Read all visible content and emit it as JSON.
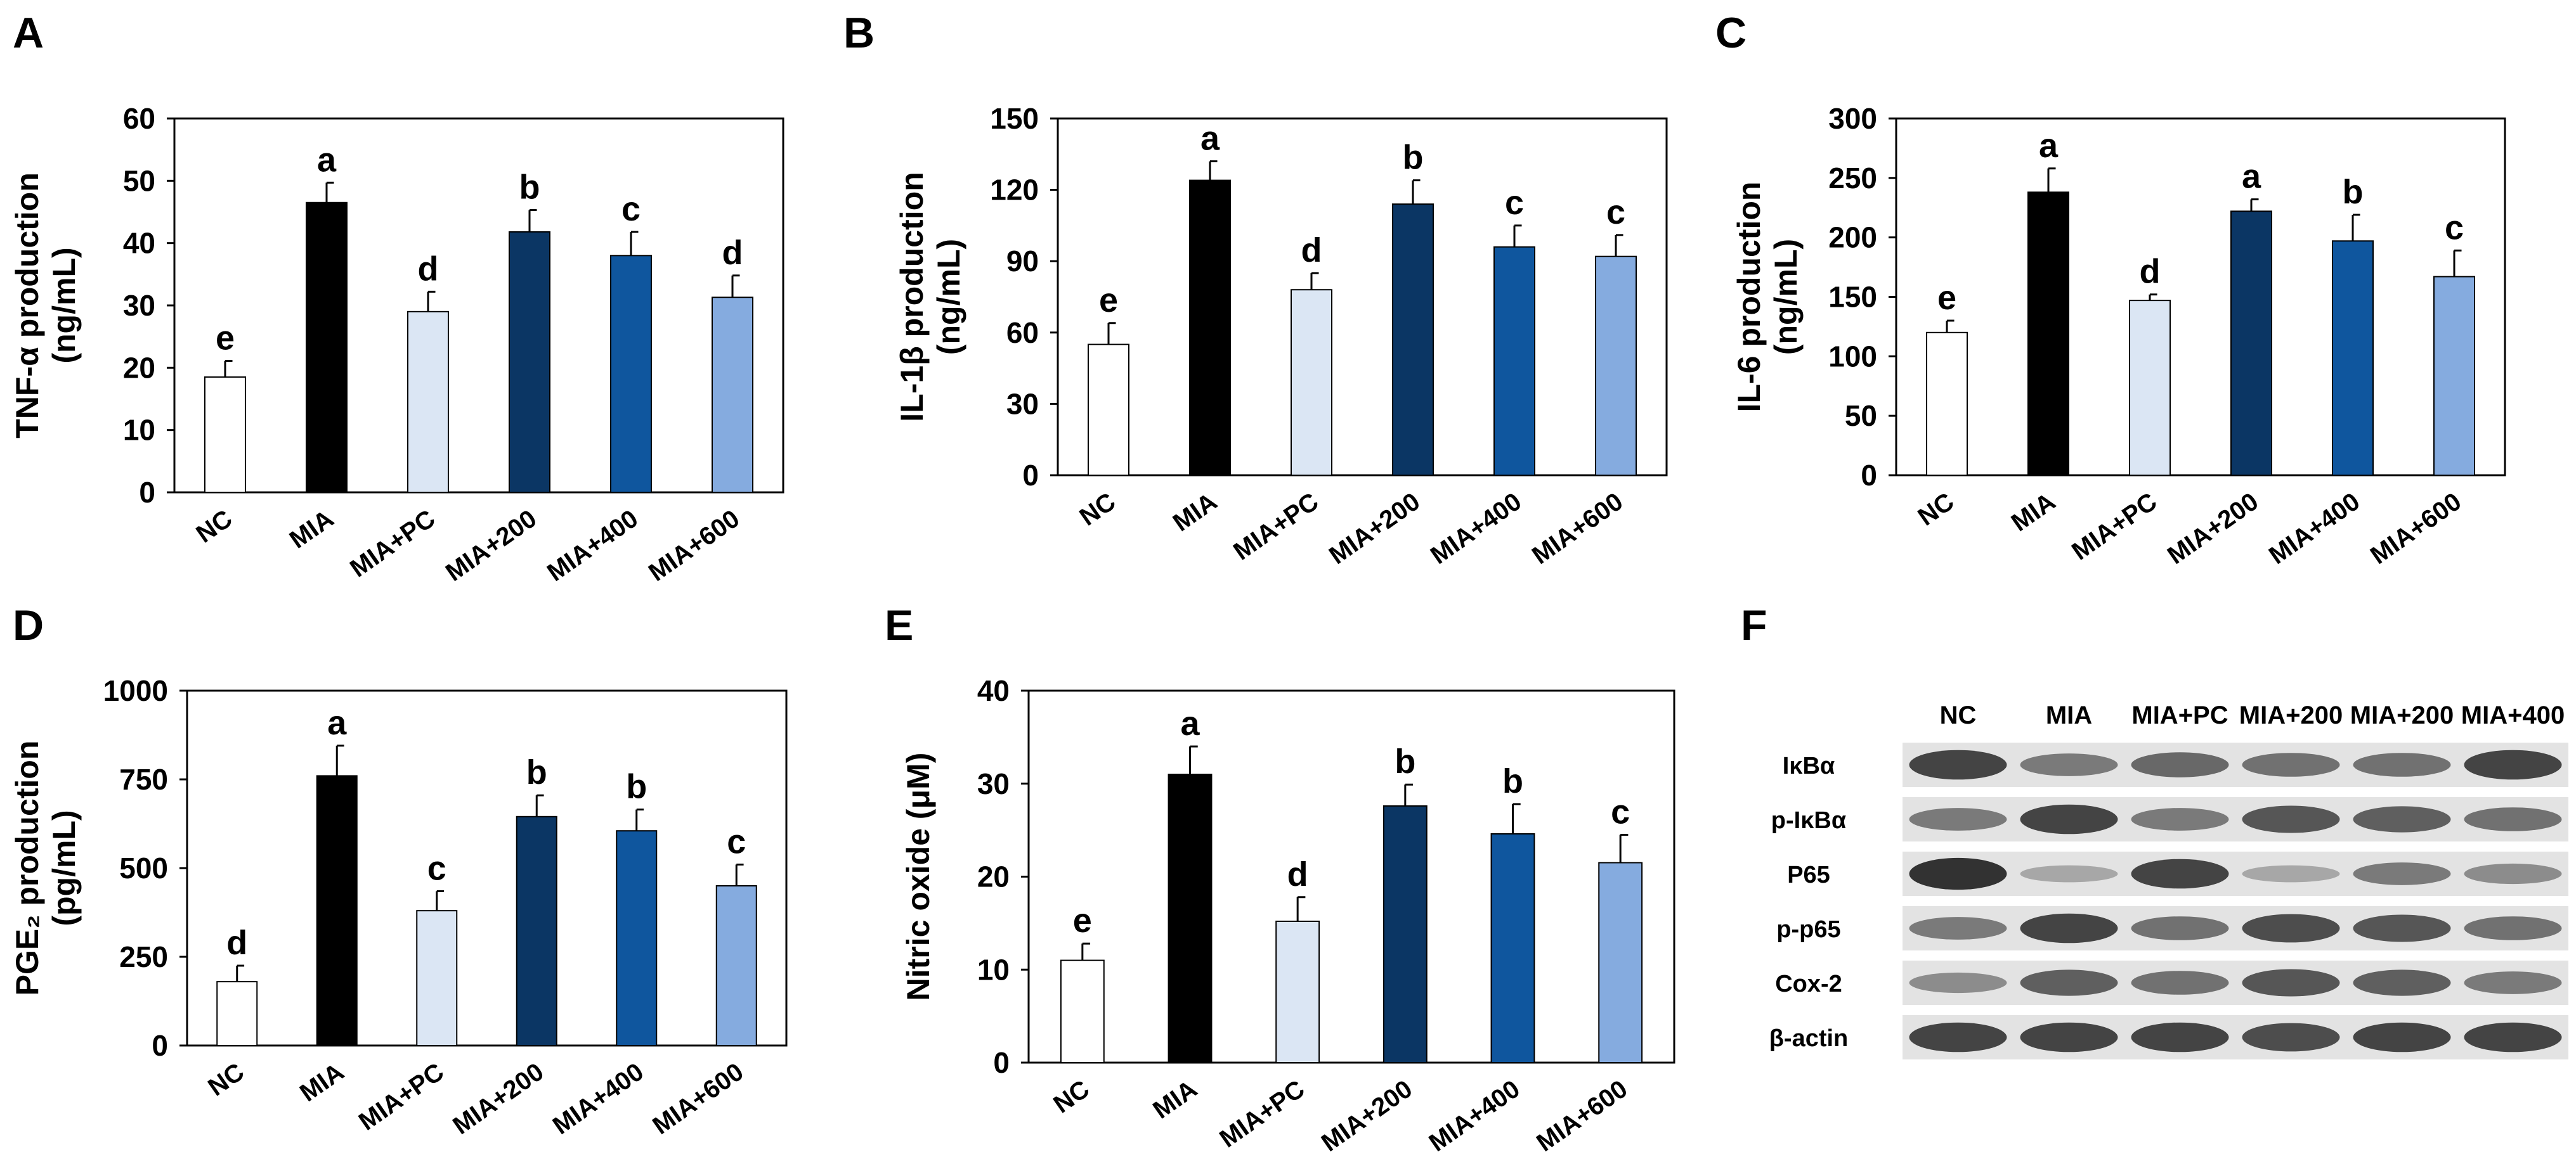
{
  "panel_letters": [
    "A",
    "B",
    "C",
    "D",
    "E",
    "F"
  ],
  "colors": {
    "NC": "#ffffff",
    "MIA": "#000000",
    "MIA+PC": "#dbe6f4",
    "MIA+200": "#0b3664",
    "MIA+400": "#0f569e",
    "MIA+600": "#85abdf"
  },
  "chart_data": [
    {
      "panel": "A",
      "type": "bar",
      "categories": [
        "NC",
        "MIA",
        "MIA+PC",
        "MIA+200",
        "MIA+400",
        "MIA+600"
      ],
      "values": [
        18.5,
        46.5,
        29.0,
        41.8,
        38.0,
        31.3
      ],
      "errors": [
        2.6,
        3.2,
        3.2,
        3.5,
        3.8,
        3.5
      ],
      "letters": [
        "e",
        "a",
        "d",
        "b",
        "c",
        "d"
      ],
      "ylabel_lines": [
        "TNF-α production",
        "(ng/mL)"
      ],
      "ylim": [
        0,
        60
      ],
      "yticks": [
        0,
        10,
        20,
        30,
        40,
        50,
        60
      ],
      "grid": false
    },
    {
      "panel": "B",
      "type": "bar",
      "categories": [
        "NC",
        "MIA",
        "MIA+PC",
        "MIA+200",
        "MIA+400",
        "MIA+600"
      ],
      "values": [
        55,
        124,
        78,
        114,
        96,
        92
      ],
      "errors": [
        9,
        8,
        7,
        10,
        9,
        9
      ],
      "letters": [
        "e",
        "a",
        "d",
        "b",
        "c",
        "c"
      ],
      "ylabel_lines": [
        "IL-1β production",
        "(ng/mL)"
      ],
      "ylim": [
        0,
        150
      ],
      "yticks": [
        0,
        30,
        60,
        90,
        120,
        150
      ],
      "grid": false
    },
    {
      "panel": "C",
      "type": "bar",
      "categories": [
        "NC",
        "MIA",
        "MIA+PC",
        "MIA+200",
        "MIA+400",
        "MIA+600"
      ],
      "values": [
        120,
        238,
        147,
        222,
        197,
        167
      ],
      "errors": [
        10,
        20,
        5,
        10,
        22,
        22
      ],
      "letters": [
        "e",
        "a",
        "d",
        "a",
        "b",
        "c"
      ],
      "ylabel_lines": [
        "IL-6 production",
        "(ng/mL)"
      ],
      "ylim": [
        0,
        300
      ],
      "yticks": [
        0,
        50,
        100,
        150,
        200,
        250,
        300
      ],
      "grid": false
    },
    {
      "panel": "D",
      "type": "bar",
      "categories": [
        "NC",
        "MIA",
        "MIA+PC",
        "MIA+200",
        "MIA+400",
        "MIA+600"
      ],
      "values": [
        180,
        760,
        380,
        645,
        605,
        450
      ],
      "errors": [
        45,
        85,
        55,
        60,
        60,
        60
      ],
      "letters": [
        "d",
        "a",
        "c",
        "b",
        "b",
        "c"
      ],
      "ylabel_lines": [
        "PGE₂ production",
        "(pg/mL)"
      ],
      "ylim": [
        0,
        1000
      ],
      "yticks": [
        0,
        250,
        500,
        750,
        1000
      ],
      "grid": false
    },
    {
      "panel": "E",
      "type": "bar",
      "categories": [
        "NC",
        "MIA",
        "MIA+PC",
        "MIA+200",
        "MIA+400",
        "MIA+600"
      ],
      "values": [
        11.0,
        31.0,
        15.2,
        27.6,
        24.6,
        21.5
      ],
      "errors": [
        1.8,
        3.0,
        2.6,
        2.3,
        3.2,
        3.0
      ],
      "letters": [
        "e",
        "a",
        "d",
        "b",
        "b",
        "c"
      ],
      "ylabel_lines": [
        "Nitric oxide (μM)"
      ],
      "ylim": [
        0,
        40
      ],
      "yticks": [
        0,
        10,
        20,
        30,
        40
      ],
      "grid": false
    }
  ],
  "western_blot": {
    "panel": "F",
    "lanes": [
      "NC",
      "MIA",
      "MIA+PC",
      "MIA+200",
      "MIA+200",
      "MIA+400"
    ],
    "proteins": [
      "IκBα",
      "p-IκBα",
      "P65",
      "p-p65",
      "Cox-2",
      "β-actin"
    ],
    "band_intensity": [
      [
        0.85,
        0.55,
        0.65,
        0.6,
        0.6,
        0.85
      ],
      [
        0.55,
        0.85,
        0.55,
        0.75,
        0.7,
        0.6
      ],
      [
        0.95,
        0.3,
        0.85,
        0.3,
        0.55,
        0.45
      ],
      [
        0.55,
        0.85,
        0.6,
        0.8,
        0.75,
        0.6
      ],
      [
        0.45,
        0.7,
        0.6,
        0.75,
        0.7,
        0.55
      ],
      [
        0.85,
        0.85,
        0.85,
        0.8,
        0.85,
        0.85
      ]
    ]
  }
}
